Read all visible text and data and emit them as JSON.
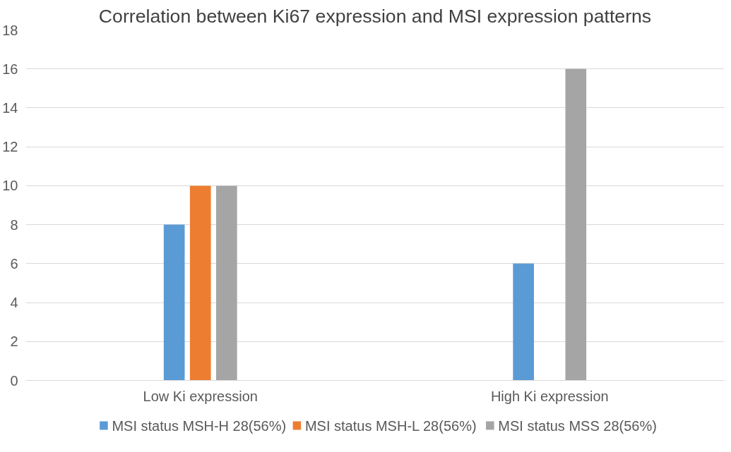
{
  "chart_data": {
    "type": "bar",
    "title": "Correlation between Ki67 expression and MSI expression patterns",
    "categories": [
      "Low Ki expression",
      "High Ki expression"
    ],
    "series": [
      {
        "name": "MSI status MSH-H 28(56%)",
        "color": "#5b9bd5",
        "values": [
          8,
          6
        ]
      },
      {
        "name": "MSI status MSH-L 28(56%)",
        "color": "#ed7d31",
        "values": [
          10,
          0
        ]
      },
      {
        "name": "MSI status MSS 28(56%)",
        "color": "#a5a5a5",
        "values": [
          10,
          16
        ]
      }
    ],
    "ylim": [
      0,
      18
    ],
    "yticks": [
      0,
      2,
      4,
      6,
      8,
      10,
      12,
      14,
      16,
      18
    ],
    "grid": "y",
    "legend": "bottom"
  }
}
